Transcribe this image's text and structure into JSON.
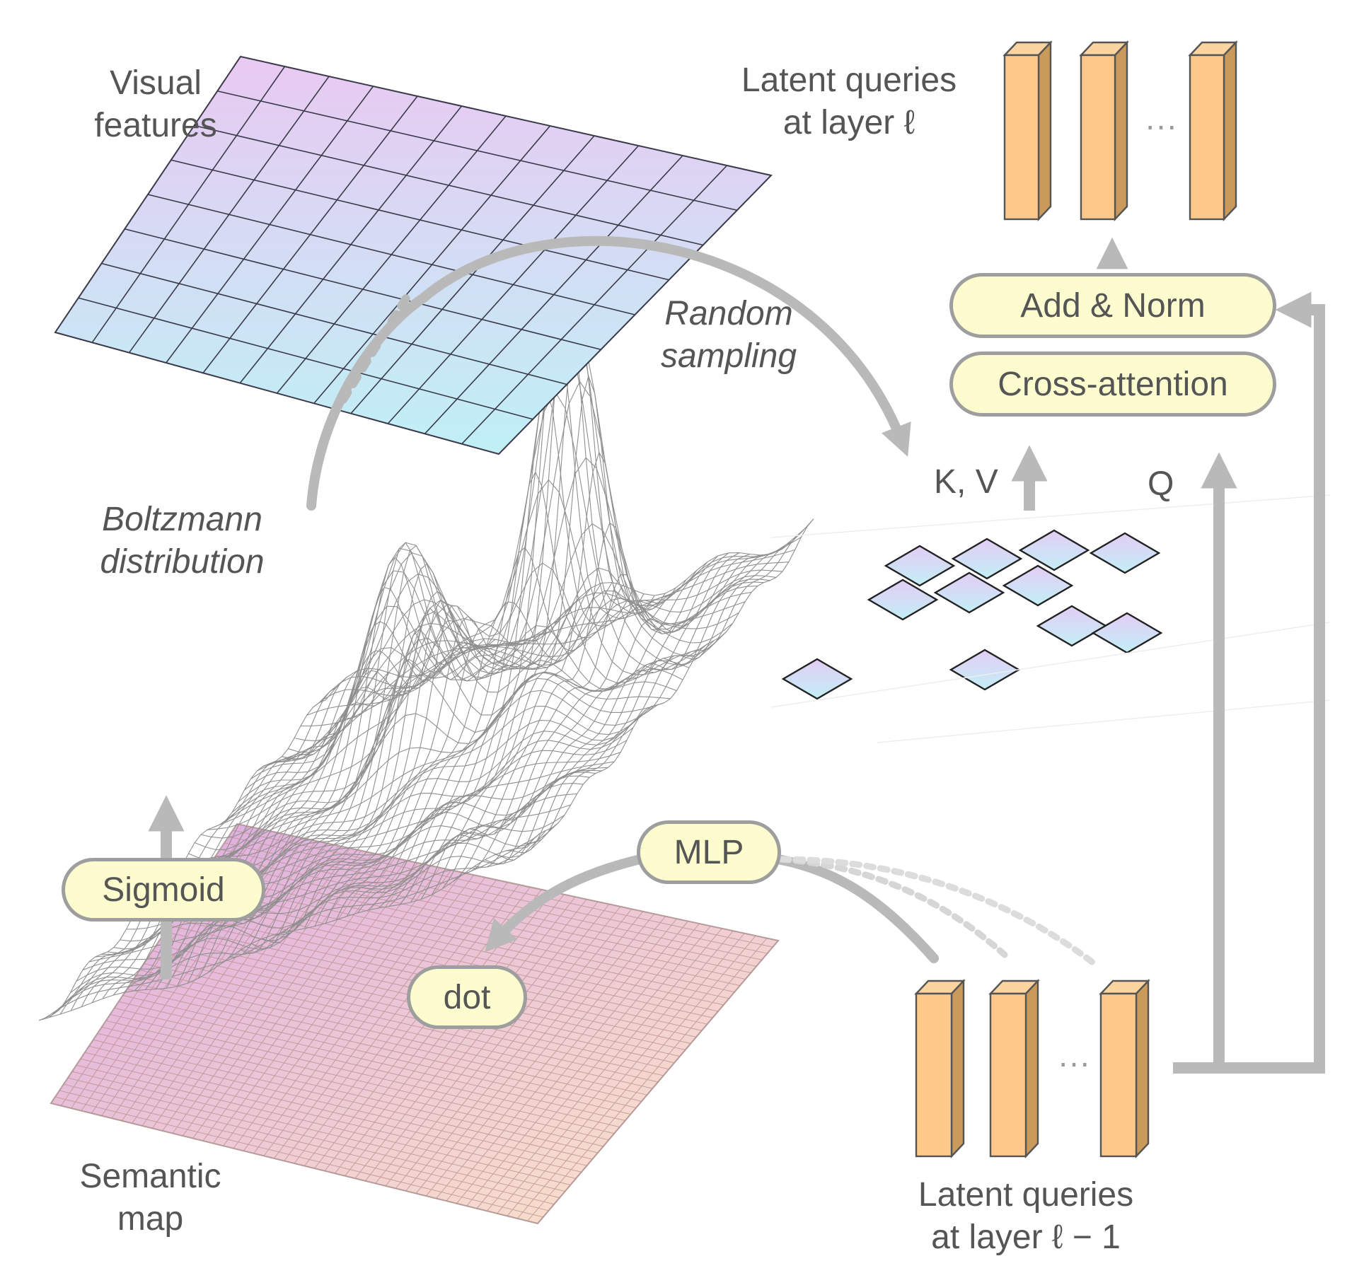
{
  "labels": {
    "visual_features": [
      "Visual",
      "features"
    ],
    "random_sampling": [
      "Random",
      "sampling"
    ],
    "boltzmann_distribution": [
      "Boltzmann",
      "distribution"
    ],
    "semantic_map": [
      "Semantic",
      "map"
    ],
    "kv": "K, V",
    "q": "Q",
    "latent_queries_top": [
      "Latent queries",
      "at layer ℓ"
    ],
    "latent_queries_bottom": [
      "Latent queries",
      "at layer ℓ − 1"
    ],
    "ellipsis": "···"
  },
  "blocks": {
    "add_norm": "Add & Norm",
    "cross_attention": "Cross-attention",
    "sigmoid": "Sigmoid",
    "mlp": "MLP",
    "dot": "dot"
  },
  "colors": {
    "arrow": "#b9b9b9",
    "block_fill": "#fdfccf",
    "block_border": "#9e9e9e",
    "text": "#555555",
    "query_front": "#fdc98a",
    "query_side": "#c99a5a",
    "visual_feature_gradient": [
      "#e9c9f2",
      "#bff0f6"
    ],
    "semantic_map_gradient": [
      "#e3b5e6",
      "#fde7c8"
    ],
    "mesh": "#8f8f8f"
  },
  "icons": [
    "arrow-up-icon",
    "curved-arrow-icon",
    "query-token-icon",
    "surface-mesh-icon"
  ]
}
